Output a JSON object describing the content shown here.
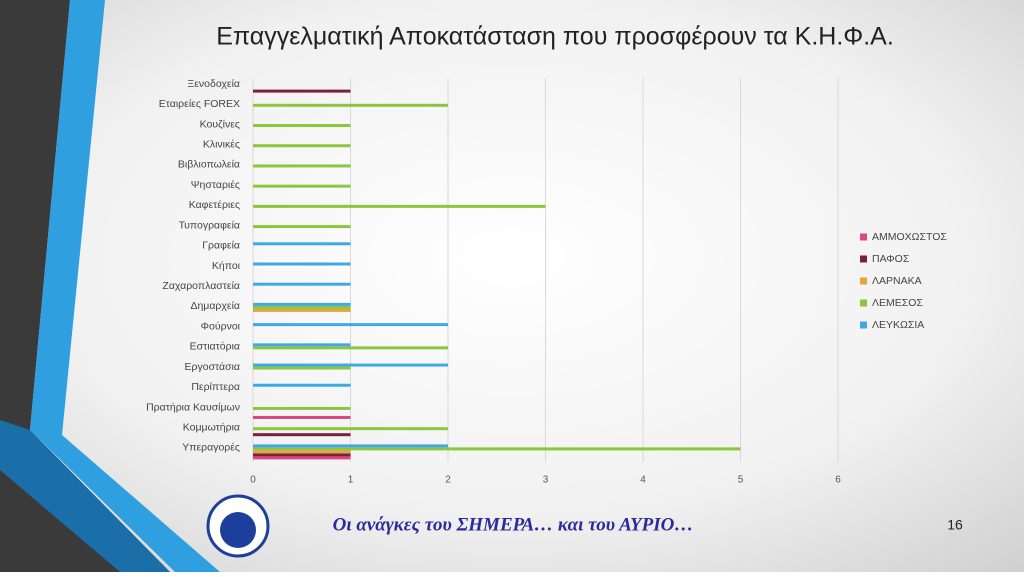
{
  "chart_data": {
    "type": "hbar",
    "title": "Επαγγελματική Αποκατάσταση που προσφέρουν τα Κ.Η.Φ.Α.",
    "categories": [
      "Ξενοδοχεία",
      "Εταιρείες FOREX",
      "Κουζίνες",
      "Κλινικές",
      "Βιβλιοπωλεία",
      "Ψησταριές",
      "Καφετέριες",
      "Τυπογραφεία",
      "Γραφεία",
      "Κήποι",
      "Ζαχαροπλαστεία",
      "Δημαρχεία",
      "Φούρνοι",
      "Εστιατόρια",
      "Εργοστάσια",
      "Περίπτερα",
      "Πρατήρια Καυσίμων",
      "Κομμωτήρια",
      "Υπεραγορές"
    ],
    "series": [
      {
        "name": "ΑΜΜΟΧΩΣΤΟΣ",
        "color": "#d9487f",
        "values": [
          0,
          0,
          0,
          0,
          0,
          0,
          0,
          0,
          0,
          0,
          0,
          0,
          0,
          0,
          0,
          0,
          1,
          0,
          1
        ]
      },
      {
        "name": "ΠΑΦΟΣ",
        "color": "#7a1f3d",
        "values": [
          1,
          0,
          0,
          0,
          0,
          0,
          0,
          0,
          0,
          0,
          0,
          0,
          0,
          0,
          0,
          0,
          0,
          1,
          1
        ]
      },
      {
        "name": "ΛΑΡΝΑΚΑ",
        "color": "#e8a33d",
        "values": [
          0,
          0,
          0,
          0,
          0,
          0,
          0,
          0,
          0,
          0,
          0,
          1,
          0,
          0,
          0,
          0,
          0,
          0,
          1
        ]
      },
      {
        "name": "ΛΕΜΕΣΟΣ",
        "color": "#8cc63f",
        "values": [
          0,
          2,
          1,
          1,
          1,
          1,
          3,
          1,
          0,
          0,
          0,
          1,
          0,
          2,
          1,
          0,
          1,
          2,
          5
        ]
      },
      {
        "name": "ΛΕΥΚΩΣΙΑ",
        "color": "#3fa9e6",
        "values": [
          0,
          0,
          0,
          0,
          0,
          0,
          0,
          0,
          1,
          1,
          1,
          1,
          2,
          1,
          2,
          1,
          0,
          0,
          2
        ]
      }
    ],
    "xlim": [
      0,
      6
    ],
    "xticks": [
      0,
      1,
      2,
      3,
      4,
      5,
      6
    ],
    "grid": true,
    "legend": "right"
  },
  "footer": {
    "slogan": "Οι ανάγκες του ΣΗΜΕΡΑ… και του ΑΥΡΙΟ…",
    "page_number": "16"
  }
}
